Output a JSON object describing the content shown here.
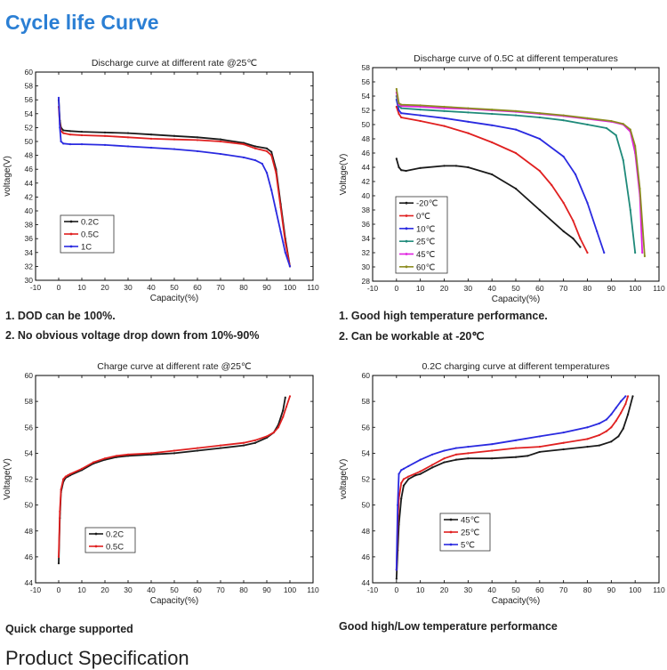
{
  "page": {
    "title": "Cycle life Curve",
    "next_section_partial": "Product Specification"
  },
  "notes": {
    "c1": [
      "1. DOD can be 100%.",
      "2. No obvious voltage drop down from 10%-90%"
    ],
    "c2": [
      "1. Good high temperature performance.",
      "2. Can be workable at -20℃"
    ],
    "c3": [
      "Quick charge supported"
    ],
    "c4": [
      "Good high/Low temperature performance"
    ]
  },
  "chart_data": [
    {
      "type": "line",
      "title": "Discharge curve at different rate @25℃",
      "xlabel": "Capacity(%)",
      "ylabel": "voltage(V)",
      "xlim": [
        -10,
        110
      ],
      "ylim": [
        30,
        60
      ],
      "xticks": [
        -10,
        0,
        10,
        20,
        30,
        40,
        50,
        60,
        70,
        80,
        90,
        100,
        110
      ],
      "yticks": [
        30,
        32,
        34,
        36,
        38,
        40,
        42,
        44,
        46,
        48,
        50,
        52,
        54,
        56,
        58,
        60
      ],
      "grid": false,
      "legend_position": "bottom-left",
      "series": [
        {
          "name": "0.2C",
          "color": "#1a1a1a",
          "x": [
            0,
            0.5,
            1,
            2,
            5,
            10,
            20,
            30,
            40,
            50,
            60,
            70,
            80,
            85,
            90,
            92,
            94,
            96,
            98,
            100
          ],
          "y": [
            56,
            53,
            52,
            51.6,
            51.5,
            51.4,
            51.3,
            51.2,
            51.0,
            50.8,
            50.6,
            50.3,
            49.8,
            49.3,
            49.0,
            48.5,
            46,
            41,
            36,
            32
          ]
        },
        {
          "name": "0.5C",
          "color": "#e02020",
          "x": [
            0,
            0.5,
            1,
            2,
            5,
            10,
            20,
            30,
            40,
            50,
            60,
            70,
            80,
            85,
            90,
            92,
            94,
            96,
            98,
            100
          ],
          "y": [
            55,
            52.5,
            51.5,
            51.2,
            51.0,
            50.9,
            50.8,
            50.6,
            50.4,
            50.3,
            50.2,
            50.0,
            49.6,
            49.0,
            48.6,
            48.0,
            45.5,
            40.5,
            35.5,
            32
          ]
        },
        {
          "name": "1C",
          "color": "#2a2ae0",
          "x": [
            0,
            0.5,
            1,
            2,
            5,
            10,
            20,
            30,
            40,
            50,
            60,
            70,
            80,
            85,
            88,
            90,
            92,
            94,
            96,
            98,
            100
          ],
          "y": [
            56.3,
            52,
            50.0,
            49.7,
            49.6,
            49.6,
            49.5,
            49.3,
            49.1,
            48.9,
            48.6,
            48.2,
            47.7,
            47.3,
            46.8,
            45.5,
            43,
            40,
            37,
            34,
            32
          ]
        }
      ]
    },
    {
      "type": "line",
      "title": "Discharge curve of 0.5C at different temperatures",
      "xlabel": "Capacity(%)",
      "ylabel": "Voltage(V)",
      "xlim": [
        -10,
        110
      ],
      "ylim": [
        28,
        58
      ],
      "xticks": [
        -10,
        0,
        10,
        20,
        30,
        40,
        50,
        60,
        70,
        80,
        90,
        100,
        110
      ],
      "yticks": [
        28,
        30,
        32,
        34,
        36,
        38,
        40,
        42,
        44,
        46,
        48,
        50,
        52,
        54,
        56,
        58
      ],
      "grid": false,
      "legend_position": "bottom-left",
      "series": [
        {
          "name": "-20℃",
          "color": "#1a1a1a",
          "x": [
            0,
            1,
            2,
            4,
            10,
            20,
            25,
            30,
            40,
            50,
            60,
            70,
            74,
            77
          ],
          "y": [
            45.2,
            44,
            43.6,
            43.5,
            43.9,
            44.2,
            44.2,
            44.0,
            43.0,
            41.0,
            38.0,
            35.0,
            34.0,
            32.8
          ]
        },
        {
          "name": "0℃",
          "color": "#e02020",
          "x": [
            0,
            1,
            2,
            10,
            20,
            30,
            40,
            50,
            60,
            65,
            70,
            74,
            77,
            80
          ],
          "y": [
            52.5,
            51.5,
            51.0,
            50.5,
            49.8,
            48.8,
            47.5,
            46.0,
            43.5,
            41.5,
            39.0,
            36.5,
            34.0,
            32.0
          ]
        },
        {
          "name": "10℃",
          "color": "#2a2ae0",
          "x": [
            0,
            1,
            2,
            10,
            20,
            30,
            40,
            50,
            60,
            70,
            75,
            80,
            84,
            87
          ],
          "y": [
            53.5,
            52,
            51.6,
            51.3,
            50.9,
            50.4,
            49.9,
            49.3,
            48.0,
            45.5,
            43.0,
            39.0,
            35.0,
            32.0
          ]
        },
        {
          "name": "25℃",
          "color": "#1f8a7a",
          "x": [
            0,
            1,
            2,
            10,
            20,
            30,
            40,
            50,
            60,
            70,
            80,
            88,
            92,
            95,
            98,
            100
          ],
          "y": [
            54,
            52.6,
            52.3,
            52.1,
            51.9,
            51.7,
            51.5,
            51.3,
            51.0,
            50.6,
            50.0,
            49.5,
            48.5,
            45.0,
            38.0,
            32.0
          ]
        },
        {
          "name": "45℃",
          "color": "#e020e0",
          "x": [
            0,
            1,
            2,
            10,
            20,
            30,
            40,
            50,
            60,
            70,
            80,
            90,
            95,
            98,
            100,
            102,
            103
          ],
          "y": [
            54.5,
            52.8,
            52.6,
            52.5,
            52.3,
            52.2,
            52.0,
            51.8,
            51.5,
            51.2,
            50.8,
            50.4,
            50.0,
            49.0,
            46.0,
            40.0,
            32.0
          ]
        },
        {
          "name": "60℃",
          "color": "#8c8c20",
          "x": [
            0,
            1,
            2,
            10,
            20,
            30,
            40,
            50,
            60,
            70,
            80,
            90,
            95,
            98,
            100,
            102,
            104
          ],
          "y": [
            55,
            53,
            52.8,
            52.7,
            52.5,
            52.3,
            52.1,
            51.9,
            51.6,
            51.3,
            50.9,
            50.5,
            50.1,
            49.3,
            47.0,
            41.0,
            31.5
          ]
        }
      ]
    },
    {
      "type": "line",
      "title": "Charge curve at different rate @25℃",
      "xlabel": "Capacity(%)",
      "ylabel": "Voltage(V)",
      "xlim": [
        -10,
        110
      ],
      "ylim": [
        44,
        60
      ],
      "xticks": [
        -10,
        0,
        10,
        20,
        30,
        40,
        50,
        60,
        70,
        80,
        90,
        100,
        110
      ],
      "yticks": [
        44,
        46,
        48,
        50,
        52,
        54,
        56,
        58,
        60
      ],
      "grid": false,
      "legend_position": "bottom-left",
      "series": [
        {
          "name": "0.2C",
          "color": "#1a1a1a",
          "x": [
            0,
            0.5,
            1,
            2,
            3,
            4,
            5,
            10,
            15,
            20,
            25,
            30,
            40,
            50,
            60,
            70,
            80,
            85,
            90,
            93,
            95,
            97,
            98
          ],
          "y": [
            45.5,
            49,
            51,
            51.8,
            52.1,
            52.2,
            52.3,
            52.7,
            53.2,
            53.5,
            53.7,
            53.8,
            53.9,
            54.0,
            54.2,
            54.4,
            54.6,
            54.8,
            55.2,
            55.6,
            56.2,
            57.3,
            58.3
          ]
        },
        {
          "name": "0.5C",
          "color": "#e02020",
          "x": [
            0,
            0.5,
            1,
            2,
            3,
            4,
            5,
            10,
            15,
            20,
            25,
            30,
            40,
            50,
            60,
            70,
            80,
            85,
            90,
            93,
            95,
            97,
            98.5,
            100
          ],
          "y": [
            46.0,
            49.5,
            51.2,
            52.0,
            52.2,
            52.3,
            52.4,
            52.8,
            53.3,
            53.6,
            53.8,
            53.9,
            54.0,
            54.2,
            54.4,
            54.6,
            54.8,
            55.0,
            55.3,
            55.6,
            56.0,
            56.8,
            57.6,
            58.4
          ]
        }
      ]
    },
    {
      "type": "line",
      "title": "0.2C charging curve at different temperatures",
      "xlabel": "Capacity(%)",
      "ylabel": "voltage(V)",
      "xlim": [
        -10,
        110
      ],
      "ylim": [
        44,
        60
      ],
      "xticks": [
        -10,
        0,
        10,
        20,
        30,
        40,
        50,
        60,
        70,
        80,
        90,
        100,
        110
      ],
      "yticks": [
        44,
        46,
        48,
        50,
        52,
        54,
        56,
        58,
        60
      ],
      "grid": false,
      "legend_position": "bottom-left",
      "series": [
        {
          "name": "45℃",
          "color": "#1a1a1a",
          "x": [
            0,
            0.5,
            1,
            2,
            3,
            5,
            8,
            10,
            15,
            20,
            25,
            30,
            40,
            50,
            55,
            60,
            70,
            80,
            85,
            90,
            93,
            95,
            97,
            99
          ],
          "y": [
            44.3,
            46.5,
            48.5,
            50.5,
            51.5,
            52.0,
            52.3,
            52.4,
            52.9,
            53.3,
            53.5,
            53.6,
            53.6,
            53.7,
            53.8,
            54.1,
            54.3,
            54.5,
            54.6,
            54.9,
            55.3,
            55.9,
            57.0,
            58.4
          ]
        },
        {
          "name": "25℃",
          "color": "#e02020",
          "x": [
            0,
            0.5,
            1,
            2,
            3,
            5,
            10,
            15,
            20,
            25,
            30,
            40,
            50,
            60,
            70,
            80,
            85,
            88,
            90,
            92,
            94,
            96,
            97
          ],
          "y": [
            45.0,
            48.5,
            50.5,
            51.7,
            52.0,
            52.2,
            52.6,
            53.1,
            53.6,
            53.9,
            54.0,
            54.2,
            54.4,
            54.5,
            54.8,
            55.1,
            55.4,
            55.7,
            56.0,
            56.5,
            57.1,
            57.8,
            58.4
          ]
        },
        {
          "name": "5℃",
          "color": "#2a2ae0",
          "x": [
            0,
            0.5,
            1,
            2,
            3,
            5,
            10,
            15,
            20,
            25,
            30,
            40,
            50,
            60,
            70,
            80,
            85,
            88,
            90,
            92,
            94,
            96
          ],
          "y": [
            45.0,
            50.0,
            52.4,
            52.7,
            52.8,
            53.0,
            53.5,
            53.9,
            54.2,
            54.4,
            54.5,
            54.7,
            55.0,
            55.3,
            55.6,
            56.0,
            56.3,
            56.6,
            57.0,
            57.5,
            58.0,
            58.4
          ]
        }
      ]
    }
  ]
}
